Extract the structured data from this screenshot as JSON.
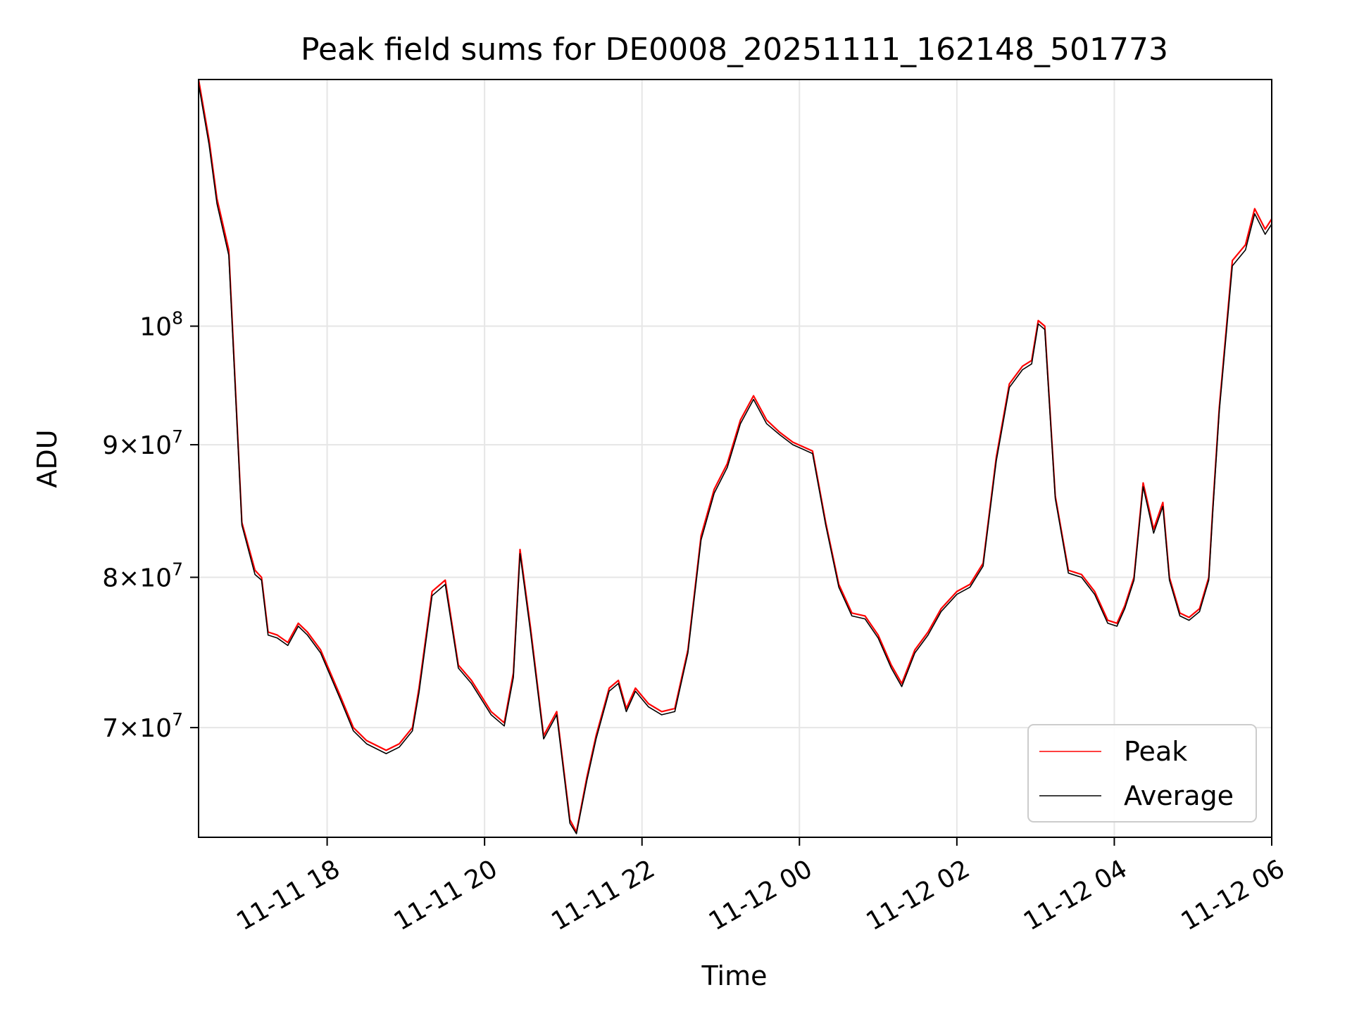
{
  "chart_data": {
    "type": "line",
    "title": "Peak field sums for DE0008_20251111_162148_501773",
    "xlabel": "Time",
    "ylabel": "ADU",
    "yscale": "log",
    "grid": true,
    "legend_placement": "lower-right",
    "xlim": [
      "2025-11-11T16:22",
      "2025-11-12T06:00"
    ],
    "ylim": [
      63500000,
      124500000
    ],
    "x_ticks": [
      {
        "value": "2025-11-11T18:00",
        "label": "11-11 18"
      },
      {
        "value": "2025-11-11T20:00",
        "label": "11-11 20"
      },
      {
        "value": "2025-11-11T22:00",
        "label": "11-11 22"
      },
      {
        "value": "2025-11-12T00:00",
        "label": "11-12 00"
      },
      {
        "value": "2025-11-12T02:00",
        "label": "11-12 02"
      },
      {
        "value": "2025-11-12T04:00",
        "label": "11-12 04"
      },
      {
        "value": "2025-11-12T06:00",
        "label": "11-12 06"
      }
    ],
    "y_ticks": [
      {
        "value": 70000000,
        "mant": "7",
        "exp": "7"
      },
      {
        "value": 80000000,
        "mant": "8",
        "exp": "7"
      },
      {
        "value": 90000000,
        "mant": "9",
        "exp": "7"
      },
      {
        "value": 100000000,
        "mant": "",
        "exp": "8"
      }
    ],
    "x": [
      "2025-11-11T16:22",
      "2025-11-11T16:30",
      "2025-11-11T16:36",
      "2025-11-11T16:45",
      "2025-11-11T16:55",
      "2025-11-11T17:05",
      "2025-11-11T17:10",
      "2025-11-11T17:15",
      "2025-11-11T17:22",
      "2025-11-11T17:30",
      "2025-11-11T17:38",
      "2025-11-11T17:45",
      "2025-11-11T17:55",
      "2025-11-11T18:10",
      "2025-11-11T18:20",
      "2025-11-11T18:30",
      "2025-11-11T18:45",
      "2025-11-11T18:55",
      "2025-11-11T19:05",
      "2025-11-11T19:10",
      "2025-11-11T19:20",
      "2025-11-11T19:30",
      "2025-11-11T19:40",
      "2025-11-11T19:50",
      "2025-11-11T20:05",
      "2025-11-11T20:15",
      "2025-11-11T20:22",
      "2025-11-11T20:27",
      "2025-11-11T20:35",
      "2025-11-11T20:45",
      "2025-11-11T20:55",
      "2025-11-11T21:05",
      "2025-11-11T21:10",
      "2025-11-11T21:18",
      "2025-11-11T21:25",
      "2025-11-11T21:35",
      "2025-11-11T21:42",
      "2025-11-11T21:48",
      "2025-11-11T21:55",
      "2025-11-11T22:05",
      "2025-11-11T22:15",
      "2025-11-11T22:25",
      "2025-11-11T22:35",
      "2025-11-11T22:45",
      "2025-11-11T22:55",
      "2025-11-11T23:05",
      "2025-11-11T23:15",
      "2025-11-11T23:25",
      "2025-11-11T23:35",
      "2025-11-11T23:45",
      "2025-11-11T23:55",
      "2025-11-12T00:10",
      "2025-11-12T00:20",
      "2025-11-12T00:30",
      "2025-11-12T00:40",
      "2025-11-12T00:50",
      "2025-11-12T01:00",
      "2025-11-12T01:10",
      "2025-11-12T01:18",
      "2025-11-12T01:28",
      "2025-11-12T01:38",
      "2025-11-12T01:48",
      "2025-11-12T02:00",
      "2025-11-12T02:10",
      "2025-11-12T02:20",
      "2025-11-12T02:30",
      "2025-11-12T02:40",
      "2025-11-12T02:50",
      "2025-11-12T02:57",
      "2025-11-12T03:02",
      "2025-11-12T03:07",
      "2025-11-12T03:15",
      "2025-11-12T03:25",
      "2025-11-12T03:35",
      "2025-11-12T03:45",
      "2025-11-12T03:55",
      "2025-11-12T04:02",
      "2025-11-12T04:08",
      "2025-11-12T04:15",
      "2025-11-12T04:22",
      "2025-11-12T04:30",
      "2025-11-12T04:37",
      "2025-11-12T04:42",
      "2025-11-12T04:50",
      "2025-11-12T04:57",
      "2025-11-12T05:05",
      "2025-11-12T05:12",
      "2025-11-12T05:15",
      "2025-11-12T05:20",
      "2025-11-12T05:30",
      "2025-11-12T05:40",
      "2025-11-12T05:47",
      "2025-11-12T05:55",
      "2025-11-12T06:00"
    ],
    "series": [
      {
        "name": "Peak",
        "color": "#ff0000",
        "values": [
          124500000,
          118000000,
          112000000,
          107000000,
          84000000,
          80500000,
          80000000,
          76200000,
          76000000,
          75500000,
          76800000,
          76200000,
          75000000,
          72000000,
          70000000,
          69200000,
          68600000,
          69000000,
          70000000,
          72500000,
          79000000,
          79800000,
          74000000,
          73000000,
          71000000,
          70300000,
          73500000,
          82000000,
          76500000,
          69500000,
          71000000,
          64500000,
          63800000,
          67000000,
          69500000,
          72500000,
          73000000,
          71200000,
          72500000,
          71500000,
          71000000,
          71200000,
          75000000,
          83000000,
          86500000,
          88500000,
          92000000,
          94000000,
          92000000,
          91000000,
          90200000,
          89500000,
          84000000,
          79500000,
          77500000,
          77300000,
          76000000,
          74000000,
          72800000,
          75000000,
          76200000,
          77800000,
          79000000,
          79500000,
          81000000,
          89000000,
          95000000,
          96500000,
          97000000,
          100500000,
          100000000,
          86000000,
          80500000,
          80200000,
          79000000,
          77000000,
          76800000,
          78000000,
          80000000,
          87000000,
          83500000,
          85500000,
          80000000,
          77500000,
          77200000,
          77800000,
          80000000,
          85000000,
          93000000,
          106000000,
          107500000,
          111000000,
          109000000,
          110000000
        ]
      },
      {
        "name": "Average",
        "color": "#000000",
        "values": [
          124000000,
          117500000,
          111500000,
          106500000,
          83800000,
          80200000,
          79800000,
          76000000,
          75800000,
          75300000,
          76600000,
          76000000,
          74800000,
          71800000,
          69800000,
          69000000,
          68400000,
          68800000,
          69800000,
          72200000,
          78700000,
          79500000,
          73800000,
          72800000,
          70800000,
          70100000,
          73200000,
          81700000,
          76200000,
          69300000,
          70800000,
          64300000,
          63700000,
          66800000,
          69300000,
          72300000,
          72800000,
          71000000,
          72300000,
          71300000,
          70800000,
          71000000,
          74800000,
          82700000,
          86200000,
          88200000,
          91700000,
          93700000,
          91700000,
          90800000,
          90000000,
          89300000,
          83800000,
          79300000,
          77300000,
          77100000,
          75800000,
          73800000,
          72600000,
          74800000,
          76000000,
          77600000,
          78800000,
          79300000,
          80800000,
          88700000,
          94700000,
          96200000,
          96700000,
          100200000,
          99700000,
          85800000,
          80300000,
          80000000,
          78800000,
          76800000,
          76600000,
          77800000,
          79800000,
          86700000,
          83200000,
          85200000,
          79800000,
          77300000,
          77000000,
          77600000,
          79800000,
          84700000,
          92700000,
          105500000,
          107000000,
          110500000,
          108500000,
          109500000
        ]
      }
    ]
  }
}
